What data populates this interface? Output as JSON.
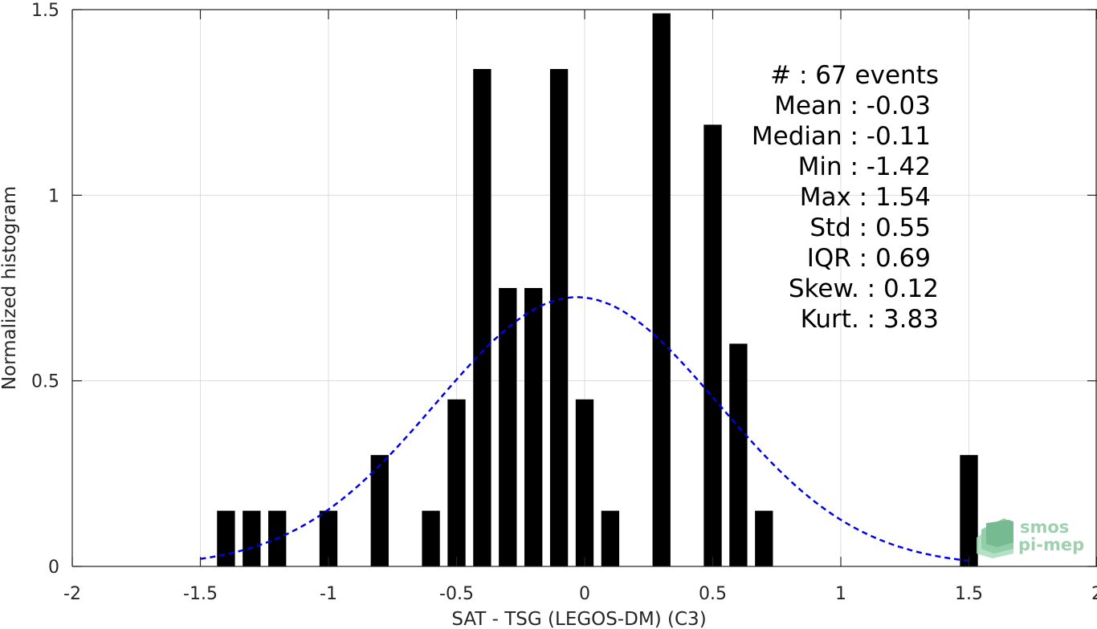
{
  "chart_data": {
    "type": "bar",
    "xlabel": "SAT - TSG (LEGOS-DM) (C3)",
    "ylabel": "Normalized histogram",
    "xlim": [
      -2,
      2
    ],
    "ylim": [
      0,
      1.5
    ],
    "xticks": [
      -2,
      -1.5,
      -1,
      -0.5,
      0,
      0.5,
      1,
      1.5,
      2
    ],
    "xtick_labels": [
      "-2",
      "-1.5",
      "-1",
      "-0.5",
      "0",
      "0.5",
      "1",
      "1.5",
      "2"
    ],
    "yticks": [
      0,
      0.5,
      1,
      1.5
    ],
    "ytick_labels": [
      "0",
      "0.5",
      "1",
      "1.5"
    ],
    "grid": true,
    "bins": [
      {
        "x": -1.4,
        "value": 0.15
      },
      {
        "x": -1.3,
        "value": 0.15
      },
      {
        "x": -1.2,
        "value": 0.15
      },
      {
        "x": -1.0,
        "value": 0.15
      },
      {
        "x": -0.8,
        "value": 0.3
      },
      {
        "x": -0.6,
        "value": 0.15
      },
      {
        "x": -0.5,
        "value": 0.45
      },
      {
        "x": -0.4,
        "value": 1.34
      },
      {
        "x": -0.3,
        "value": 0.75
      },
      {
        "x": -0.2,
        "value": 0.75
      },
      {
        "x": -0.1,
        "value": 1.34
      },
      {
        "x": 0.0,
        "value": 0.45
      },
      {
        "x": 0.1,
        "value": 0.15
      },
      {
        "x": 0.3,
        "value": 1.49
      },
      {
        "x": 0.5,
        "value": 1.19
      },
      {
        "x": 0.6,
        "value": 0.6
      },
      {
        "x": 0.7,
        "value": 0.15
      },
      {
        "x": 1.5,
        "value": 0.3
      }
    ],
    "bin_width": 0.07,
    "bar_color": "#000000",
    "fit_curve": {
      "style": "dashed",
      "color": "#0000ee",
      "mean": -0.03,
      "std": 0.55,
      "x_range": [
        -1.5,
        1.5
      ]
    },
    "stats": [
      "#  : 67 events",
      "Mean : -0.03",
      "Median : -0.11",
      "Min : -1.42",
      "Max : 1.54",
      "Std : 0.55",
      "IQR : 0.69",
      "Skew. : 0.12",
      "Kurt. : 3.83"
    ]
  },
  "watermark": {
    "line1": "smos",
    "line2": "pi-mep",
    "color": "#8cc9a2"
  }
}
